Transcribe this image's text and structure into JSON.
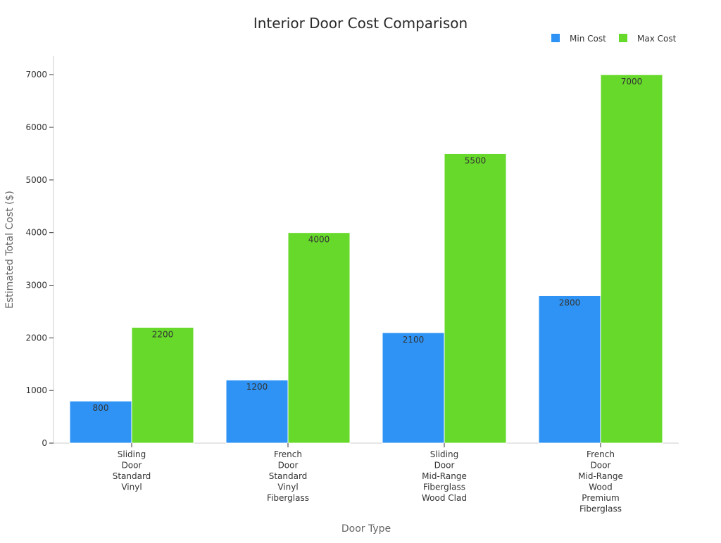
{
  "chart_data": {
    "type": "bar",
    "title": "Interior Door Cost Comparison",
    "xlabel": "Door Type",
    "ylabel": "Estimated Total Cost ($)",
    "categories": [
      [
        "Sliding",
        "Door",
        "Standard",
        "Vinyl"
      ],
      [
        "French",
        "Door",
        "Standard",
        "Vinyl",
        "Fiberglass"
      ],
      [
        "Sliding",
        "Door",
        "Mid-Range",
        "Fiberglass",
        "Wood Clad"
      ],
      [
        "French",
        "Door",
        "Mid-Range",
        "Wood",
        "Premium",
        "Fiberglass"
      ]
    ],
    "series": [
      {
        "name": "Min Cost",
        "color": "#2e93f5",
        "values": [
          800,
          1200,
          2100,
          2800
        ]
      },
      {
        "name": "Max Cost",
        "color": "#66d92a",
        "values": [
          2200,
          4000,
          5500,
          7000
        ]
      }
    ],
    "ylim": [
      0,
      7350
    ],
    "yticks": [
      0,
      1000,
      2000,
      3000,
      4000,
      5000,
      6000,
      7000
    ],
    "legend_position": "top-right",
    "grid": false
  }
}
